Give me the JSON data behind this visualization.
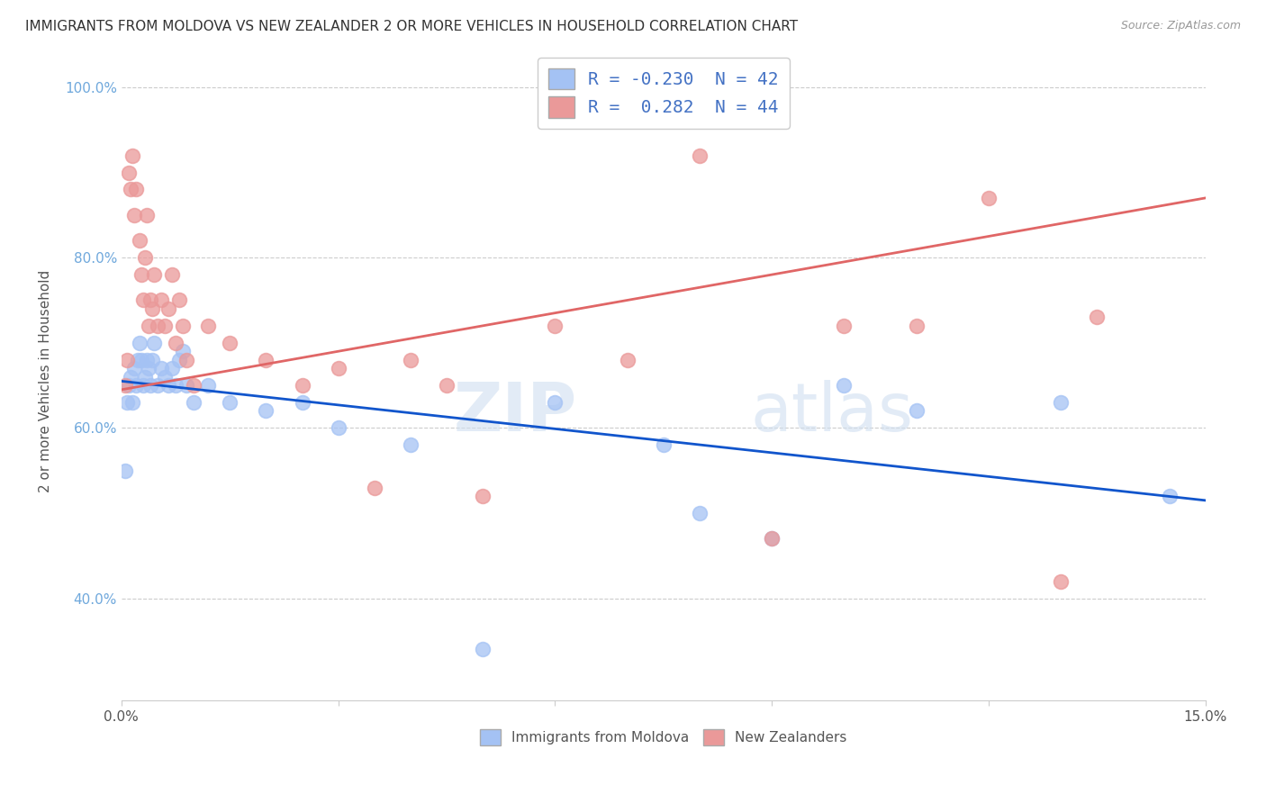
{
  "title": "IMMIGRANTS FROM MOLDOVA VS NEW ZEALANDER 2 OR MORE VEHICLES IN HOUSEHOLD CORRELATION CHART",
  "source": "Source: ZipAtlas.com",
  "ylabel": "2 or more Vehicles in Household",
  "xlim": [
    0.0,
    15.0
  ],
  "ylim": [
    28.0,
    103.0
  ],
  "xticks": [
    0.0,
    3.0,
    6.0,
    9.0,
    12.0,
    15.0
  ],
  "ytick_labels": [
    "40.0%",
    "60.0%",
    "80.0%",
    "100.0%"
  ],
  "yticks": [
    40.0,
    60.0,
    80.0,
    100.0
  ],
  "blue_R": -0.23,
  "blue_N": 42,
  "pink_R": 0.282,
  "pink_N": 44,
  "blue_color": "#a4c2f4",
  "pink_color": "#ea9999",
  "blue_line_color": "#1155cc",
  "pink_line_color": "#e06666",
  "blue_scatter_x": [
    0.05,
    0.08,
    0.1,
    0.12,
    0.15,
    0.18,
    0.2,
    0.22,
    0.25,
    0.28,
    0.3,
    0.32,
    0.35,
    0.38,
    0.4,
    0.42,
    0.45,
    0.5,
    0.55,
    0.6,
    0.65,
    0.7,
    0.75,
    0.8,
    0.85,
    0.9,
    1.0,
    1.2,
    1.5,
    2.0,
    2.5,
    3.0,
    4.0,
    5.0,
    6.0,
    7.5,
    8.0,
    9.0,
    10.0,
    11.0,
    13.0,
    14.5
  ],
  "blue_scatter_y": [
    55,
    63,
    65,
    66,
    63,
    67,
    65,
    68,
    70,
    68,
    65,
    66,
    68,
    67,
    65,
    68,
    70,
    65,
    67,
    66,
    65,
    67,
    65,
    68,
    69,
    65,
    63,
    65,
    63,
    62,
    63,
    60,
    58,
    34,
    63,
    58,
    50,
    47,
    65,
    62,
    63,
    52
  ],
  "pink_scatter_x": [
    0.05,
    0.08,
    0.1,
    0.12,
    0.15,
    0.18,
    0.2,
    0.25,
    0.28,
    0.3,
    0.32,
    0.35,
    0.38,
    0.4,
    0.42,
    0.45,
    0.5,
    0.55,
    0.6,
    0.65,
    0.7,
    0.75,
    0.8,
    0.85,
    0.9,
    1.0,
    1.2,
    1.5,
    2.0,
    2.5,
    3.0,
    3.5,
    4.0,
    4.5,
    5.0,
    6.0,
    7.0,
    8.0,
    9.0,
    10.0,
    11.0,
    12.0,
    13.0,
    13.5
  ],
  "pink_scatter_y": [
    65,
    68,
    90,
    88,
    92,
    85,
    88,
    82,
    78,
    75,
    80,
    85,
    72,
    75,
    74,
    78,
    72,
    75,
    72,
    74,
    78,
    70,
    75,
    72,
    68,
    65,
    72,
    70,
    68,
    65,
    67,
    53,
    68,
    65,
    52,
    72,
    68,
    92,
    47,
    72,
    72,
    87,
    42,
    73
  ],
  "legend_label_blue": "Immigrants from Moldova",
  "legend_label_pink": "New Zealanders",
  "watermark_part1": "ZIP",
  "watermark_part2": "atlas",
  "background_color": "#ffffff",
  "grid_color": "#cccccc",
  "blue_line_x0": 0.0,
  "blue_line_y0": 65.5,
  "blue_line_x1": 15.0,
  "blue_line_y1": 51.5,
  "pink_line_x0": 0.0,
  "pink_line_y0": 64.5,
  "pink_line_x1": 15.0,
  "pink_line_y1": 87.0
}
